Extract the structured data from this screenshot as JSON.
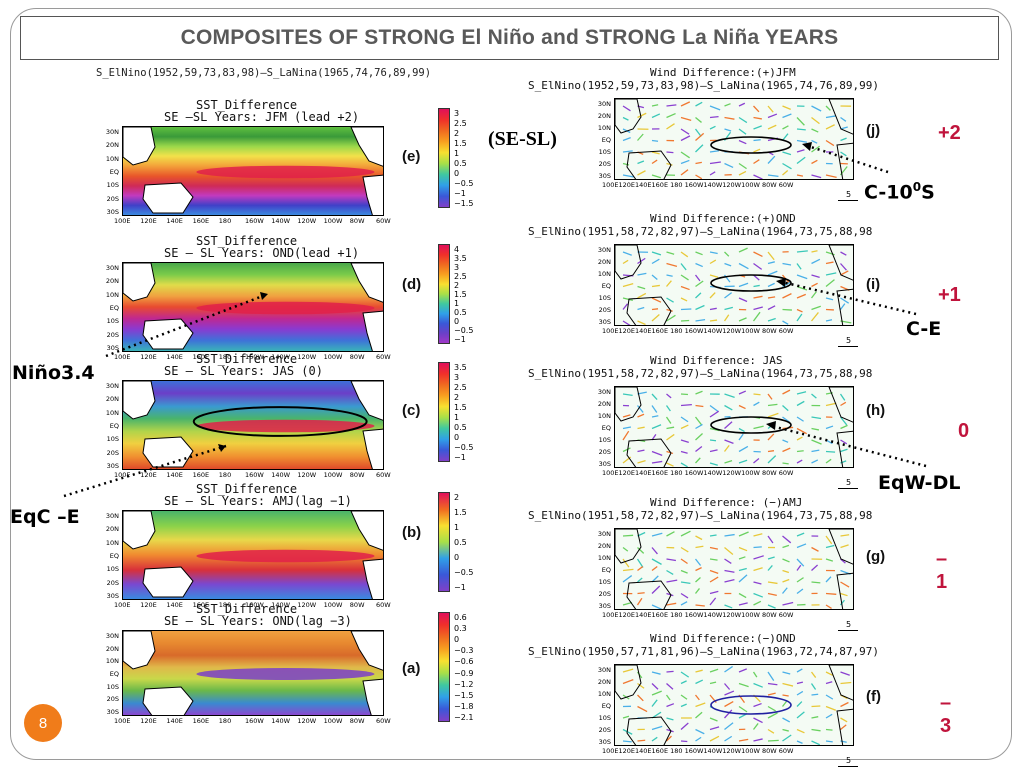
{
  "title": "COMPOSITES OF STRONG El Niño and STRONG La Niña YEARS",
  "left_header": "S_ElNino(1952,59,73,83,98)–S_LaNina(1965,74,76,89,99)",
  "sst_panels": [
    {
      "id": "e",
      "label": "(e)",
      "title1": "SST_Difference",
      "title2": "SE –SL Years: JFM (lead +2)",
      "cbar": [
        "3",
        "2.5",
        "2",
        "1.5",
        "1",
        "0.5",
        "0",
        "−0.5",
        "−1",
        "−1.5"
      ]
    },
    {
      "id": "d",
      "label": "(d)",
      "title1": "SST_Difference",
      "title2": "SE – SL Years: OND(lead +1)",
      "cbar": [
        "4",
        "3.5",
        "3",
        "2.5",
        "2",
        "1.5",
        "1",
        "0.5",
        "0",
        "−0.5",
        "−1"
      ]
    },
    {
      "id": "c",
      "label": "(c)",
      "title1": "SST_Difference",
      "title2": "SE – SL Years: JAS (0)",
      "cbar": [
        "3.5",
        "3",
        "2.5",
        "2",
        "1.5",
        "1",
        "0.5",
        "0",
        "−0.5",
        "−1"
      ]
    },
    {
      "id": "b",
      "label": "(b)",
      "title1": "SST_Difference",
      "title2": "SE – SL Years: AMJ(lag −1)",
      "cbar": [
        "2",
        "1.5",
        "1",
        "0.5",
        "0",
        "−0.5",
        "−1"
      ]
    },
    {
      "id": "a",
      "label": "(a)",
      "title1": "SST_Difference",
      "title2": "SE – SL Years: OND(lag −3)",
      "cbar": [
        "0.6",
        "0.3",
        "0",
        "−0.3",
        "−0.6",
        "−0.9",
        "−1.2",
        "−1.5",
        "−1.8",
        "−2.1"
      ]
    }
  ],
  "sst_ylabels": [
    "30N",
    "20N",
    "10N",
    "EQ",
    "10S",
    "20S",
    "30S"
  ],
  "sst_xlabels": [
    "100E",
    "120E",
    "140E",
    "160E",
    "180",
    "160W",
    "140W",
    "120W",
    "100W",
    "80W",
    "60W"
  ],
  "wind_panels": [
    {
      "id": "j",
      "label": "(j)",
      "lag": "+2",
      "title": "Wind Difference:(+)JFM",
      "sub": "S_ElNino(1952,59,73,83,98)–S_LaNina(1965,74,76,89,99)"
    },
    {
      "id": "i",
      "label": "(i)",
      "lag": "+1",
      "title": "Wind Difference:(+)OND",
      "sub": "S_ElNino(1951,58,72,82,97)–S_LaNina(1964,73,75,88,98"
    },
    {
      "id": "h",
      "label": "(h)",
      "lag": "0",
      "title": "Wind Difference: JAS",
      "sub": "S_ElNino(1951,58,72,82,97)–S_LaNina(1964,73,75,88,98"
    },
    {
      "id": "g",
      "label": "(g)",
      "lag": "–1",
      "title": "Wind Difference: (−)AMJ",
      "sub": "S_ElNino(1951,58,72,82,97)–S_LaNina(1964,73,75,88,98"
    },
    {
      "id": "f",
      "label": "(f)",
      "lag": "–3",
      "title": "Wind Difference:(−)OND",
      "sub": "S_ElNino(1950,57,71,81,96)–S_LaNina(1963,72,74,87,97)"
    }
  ],
  "wind_ylabels": [
    "30N",
    "20N",
    "10N",
    "EQ",
    "10S",
    "20S",
    "30S"
  ],
  "wind_xlabels": "100E120E140E160E 180 160W140W120W100W 80W 60W",
  "wind_scale": "5",
  "callouts": {
    "nino34": "Niño3.4",
    "eqc": "EqC –E",
    "sesl": "(SE-SL)",
    "c10s": "C-10",
    "c10s_sup": "0",
    "c10s_end": "S",
    "ce": "C-E",
    "eqwdl": "EqW-DL"
  },
  "slide_number": "8"
}
